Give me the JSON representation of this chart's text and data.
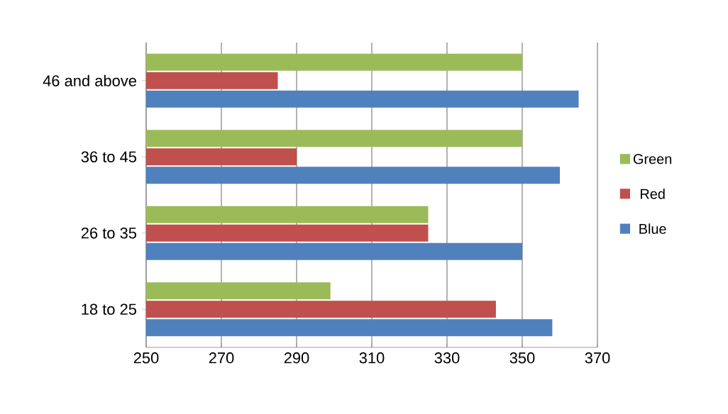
{
  "chart_data": {
    "type": "bar",
    "orientation": "horizontal",
    "categories": [
      "46 and above",
      "36 to 45",
      "26 to 35",
      "18 to 25"
    ],
    "series": [
      {
        "name": "Green",
        "color": "#9bbb59",
        "values": [
          350,
          350,
          325,
          299
        ]
      },
      {
        "name": "Red",
        "color": "#c0504d",
        "values": [
          285,
          290,
          325,
          343
        ]
      },
      {
        "name": "Blue",
        "color": "#4f81bd",
        "values": [
          365,
          360,
          350,
          358
        ]
      }
    ],
    "xlim": [
      250,
      370
    ],
    "xticks": [
      250,
      270,
      290,
      310,
      330,
      350,
      370
    ],
    "grid": "x",
    "legend": "right"
  }
}
